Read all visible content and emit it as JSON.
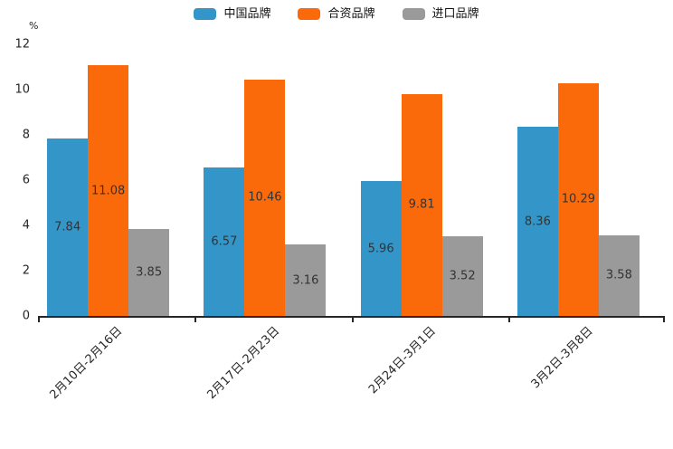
{
  "chart_data": {
    "type": "bar",
    "categories": [
      "2月10日-2月16日",
      "2月17日-2月23日",
      "2月24日-3月1日",
      "3月2日-3月8日"
    ],
    "series": [
      {
        "name": "中国品牌",
        "color": "#3496c8",
        "values": [
          7.84,
          6.57,
          5.96,
          8.36
        ]
      },
      {
        "name": "合资品牌",
        "color": "#fa6a0a",
        "values": [
          11.08,
          10.46,
          9.81,
          10.29
        ]
      },
      {
        "name": "进口品牌",
        "color": "#9a9a9a",
        "values": [
          3.85,
          3.16,
          3.52,
          3.58
        ]
      }
    ],
    "title": "",
    "xlabel": "",
    "ylabel": "%",
    "ylim": [
      0,
      12
    ],
    "yticks": [
      0,
      2,
      4,
      6,
      8,
      10,
      12
    ],
    "grid": false,
    "legend_position": "top-center",
    "value_label_position": "inside-center",
    "x_label_rotation_deg": 45
  },
  "colors": {
    "axis": "#262626",
    "value_label": "#333333",
    "background": "#ffffff"
  }
}
